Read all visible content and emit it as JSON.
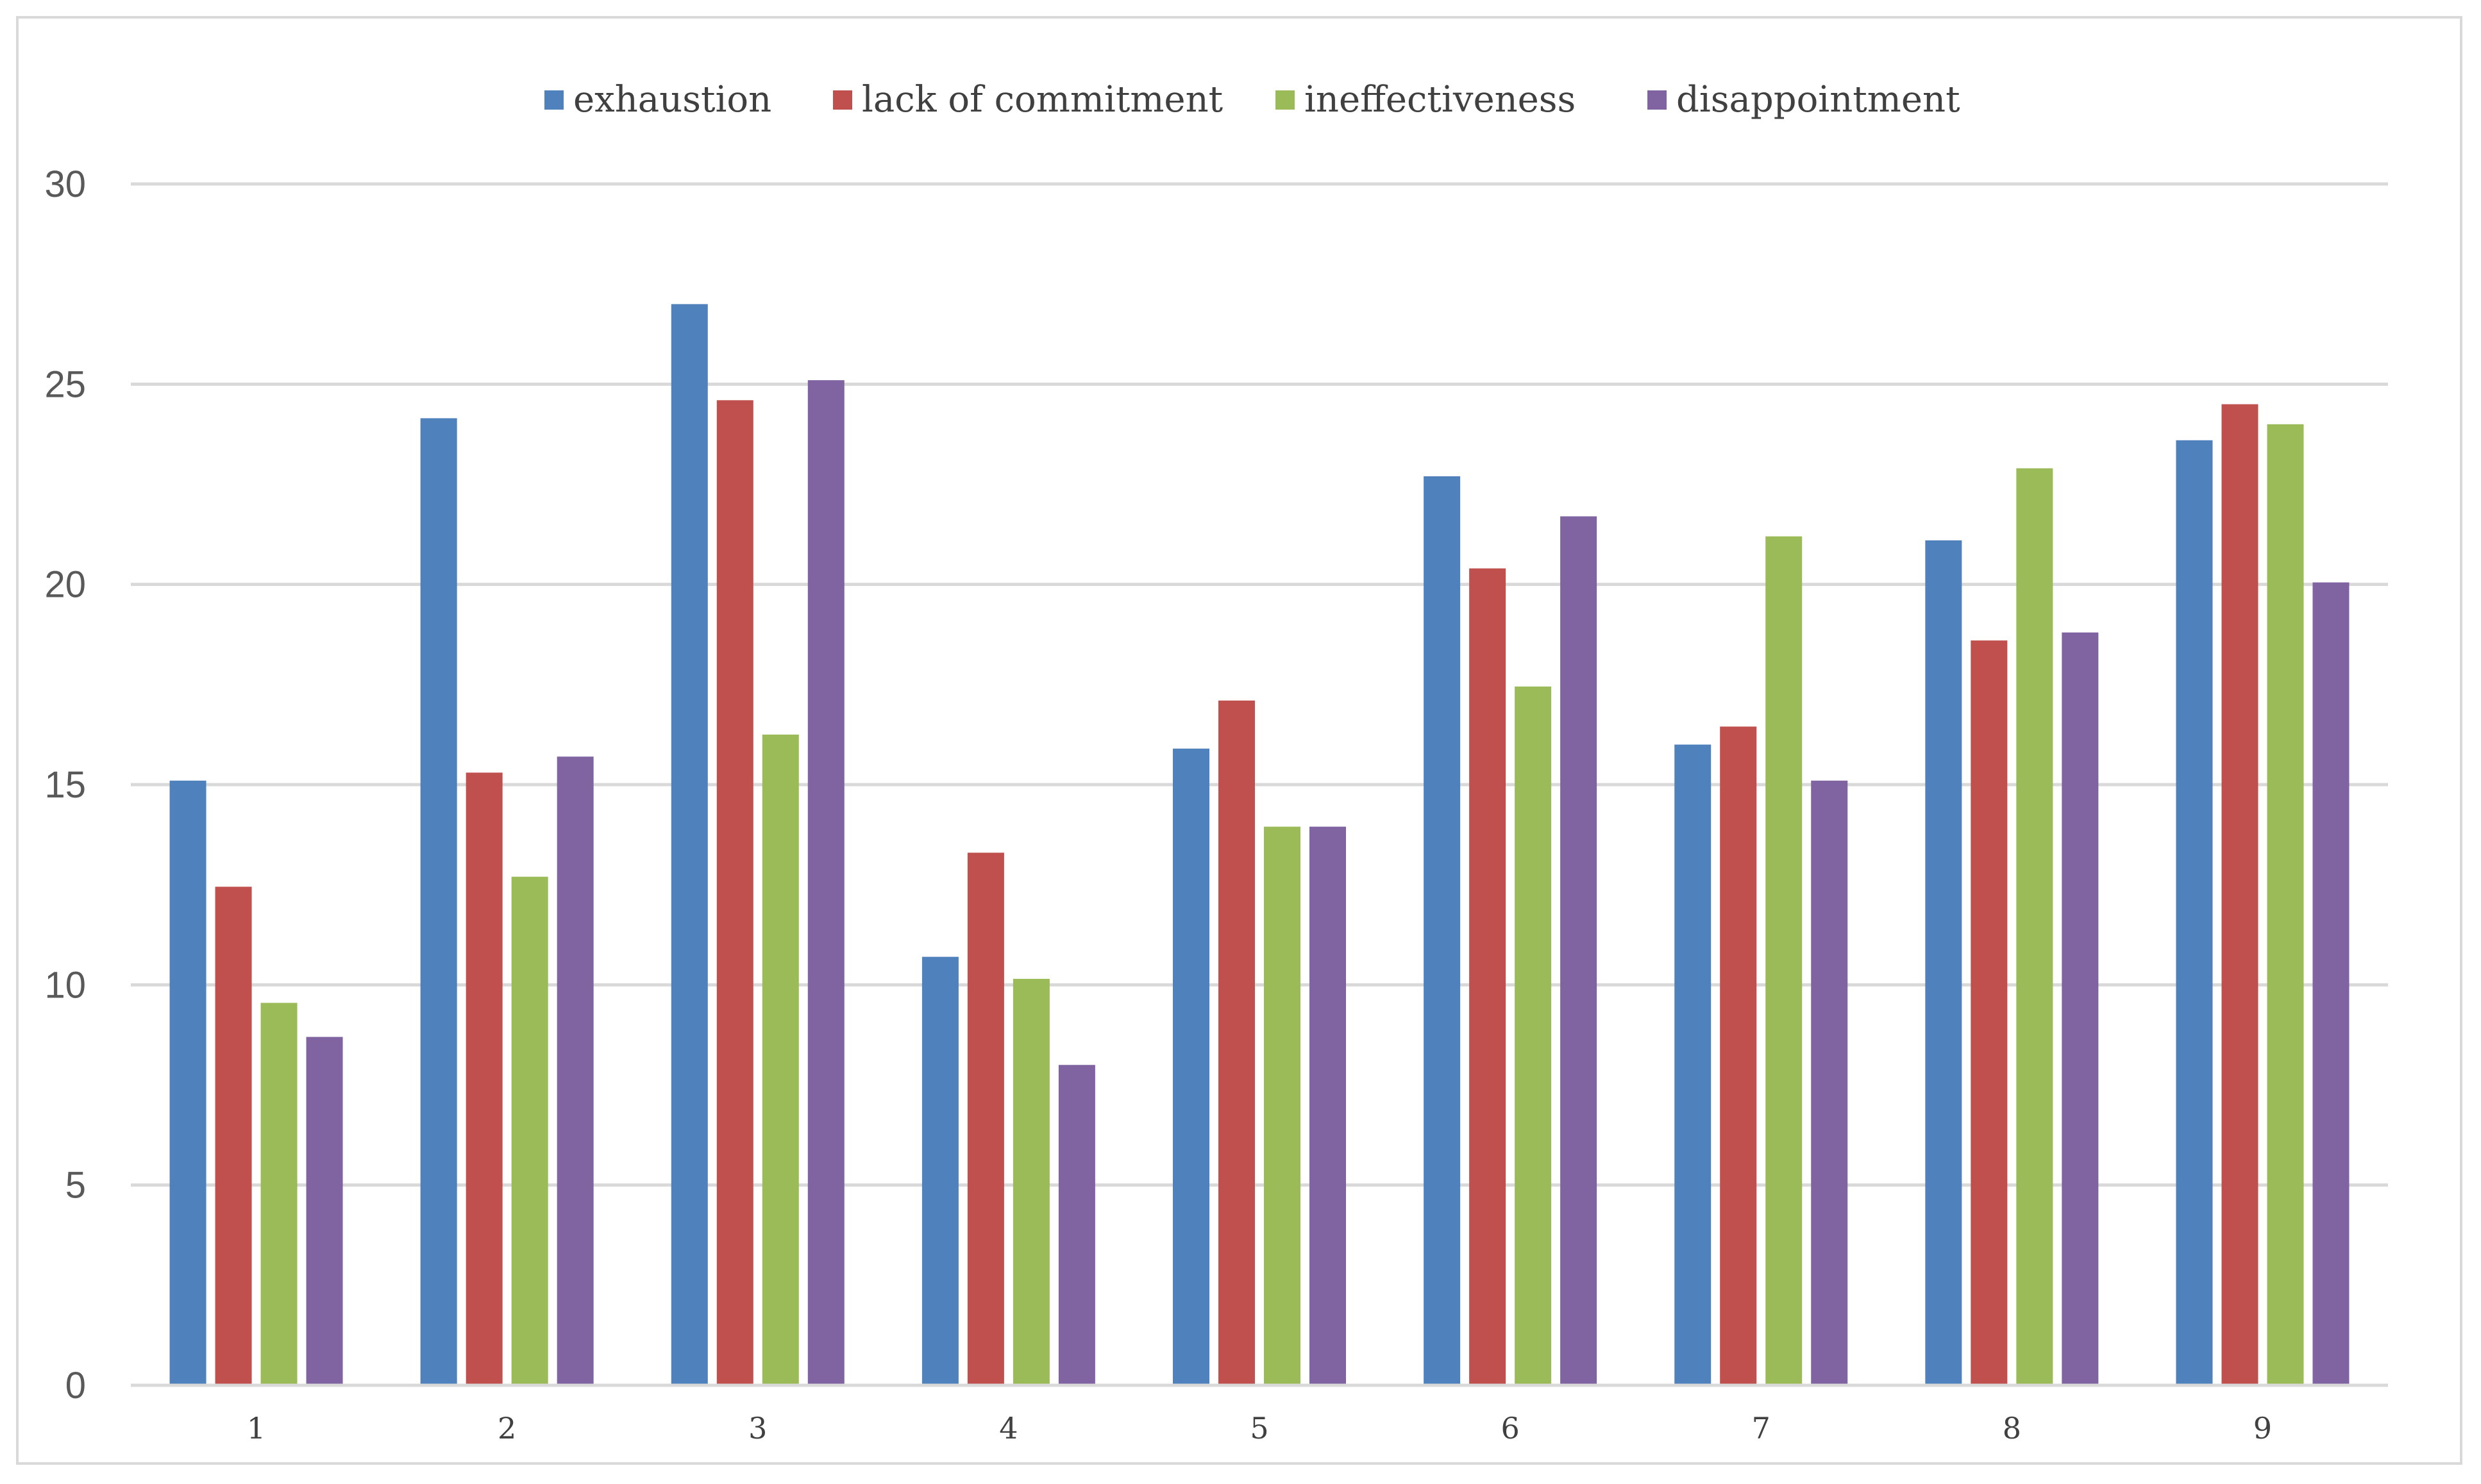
{
  "chart_data": {
    "type": "bar",
    "title": "",
    "xlabel": "",
    "ylabel": "",
    "ylim": [
      0,
      30
    ],
    "yticks": [
      0,
      5,
      10,
      15,
      20,
      25,
      30
    ],
    "grid": true,
    "legend_position": "top-center",
    "categories": [
      "1",
      "2",
      "3",
      "4",
      "5",
      "6",
      "7",
      "8",
      "9"
    ],
    "series": [
      {
        "name": "exhaustion",
        "color": "#4f81bd",
        "values": [
          15.1,
          24.15,
          27.0,
          10.7,
          15.9,
          22.7,
          16.0,
          21.1,
          23.6
        ]
      },
      {
        "name": "lack of commitment",
        "color": "#c0504d",
        "values": [
          12.45,
          15.3,
          24.6,
          13.3,
          17.1,
          20.4,
          16.45,
          18.6,
          24.5
        ]
      },
      {
        "name": "ineffectiveness",
        "color": "#9bbb59",
        "values": [
          9.55,
          12.7,
          16.25,
          10.15,
          13.95,
          17.45,
          21.2,
          22.9,
          24.0
        ]
      },
      {
        "name": "disappointment",
        "color": "#8064a2",
        "values": [
          8.7,
          15.7,
          25.1,
          8.0,
          13.95,
          21.7,
          15.1,
          18.8,
          20.05
        ]
      }
    ]
  }
}
